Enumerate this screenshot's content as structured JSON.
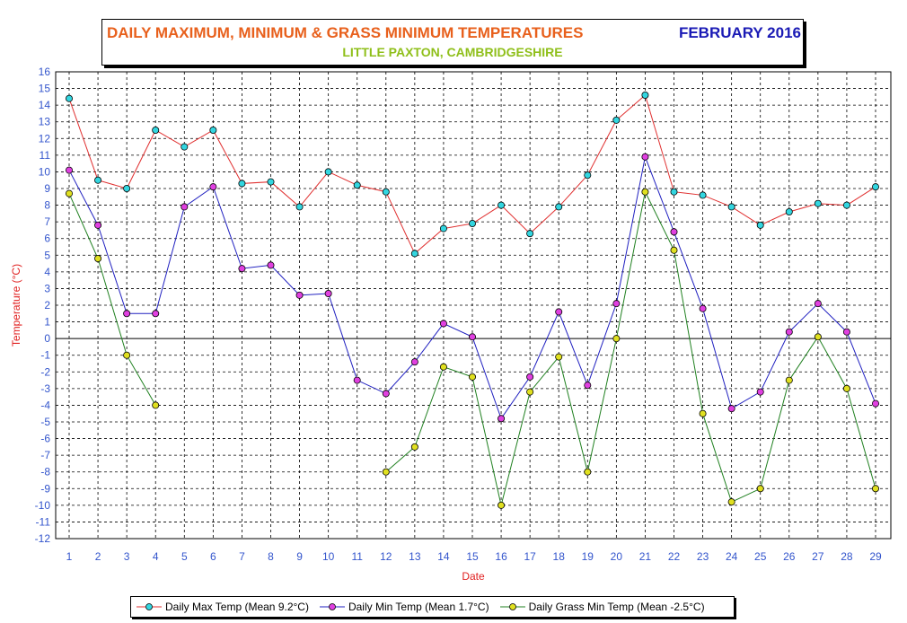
{
  "title": {
    "main": "DAILY MAXIMUM, MINIMUM & GRASS MINIMUM TEMPERATURES",
    "date": "FEBRUARY 2016",
    "subtitle": "LITTLE PAXTON, CAMBRIDGESHIRE"
  },
  "colors": {
    "title_main": "#e8601c",
    "title_date": "#1a1ab5",
    "subtitle": "#8fbf1a",
    "axis_label": "#e02020",
    "tick_label": "#3355cc"
  },
  "chart_data": {
    "type": "line",
    "title": "DAILY MAXIMUM, MINIMUM & GRASS MINIMUM TEMPERATURES FEBRUARY 2016",
    "subtitle": "LITTLE PAXTON, CAMBRIDGESHIRE",
    "xlabel": "Date",
    "ylabel": "Temperature (°C)",
    "ylim": [
      -12,
      16
    ],
    "xlim": [
      1,
      29
    ],
    "grid": true,
    "legend_position": "bottom",
    "x": [
      1,
      2,
      3,
      4,
      5,
      6,
      7,
      8,
      9,
      10,
      11,
      12,
      13,
      14,
      15,
      16,
      17,
      18,
      19,
      20,
      21,
      22,
      23,
      24,
      25,
      26,
      27,
      28,
      29
    ],
    "y_ticks": [
      16,
      15,
      14,
      13,
      12,
      11,
      10,
      9,
      8,
      7,
      6,
      5,
      4,
      3,
      2,
      1,
      0,
      -1,
      -2,
      -3,
      -4,
      -5,
      -6,
      -7,
      -8,
      -9,
      -10,
      -11,
      -12
    ],
    "series": [
      {
        "name": "Daily Max Temp (Mean 9.2°C)",
        "line_color": "#e03030",
        "marker_color": "#33d6e0",
        "values": [
          14.4,
          9.5,
          9.0,
          12.5,
          11.5,
          12.5,
          9.3,
          9.4,
          7.9,
          10.0,
          9.2,
          8.8,
          5.1,
          6.6,
          6.9,
          8.0,
          6.3,
          7.9,
          9.8,
          13.1,
          14.6,
          8.8,
          8.6,
          7.9,
          6.8,
          7.6,
          8.1,
          8.0,
          9.1
        ]
      },
      {
        "name": "Daily Min Temp (Mean 1.7°C)",
        "line_color": "#2020c0",
        "marker_color": "#e040e0",
        "values": [
          10.1,
          6.8,
          1.5,
          1.5,
          7.9,
          9.1,
          4.2,
          4.4,
          2.6,
          2.7,
          -2.5,
          -3.3,
          -1.4,
          0.9,
          0.1,
          -4.8,
          -2.3,
          1.6,
          -2.8,
          2.1,
          10.9,
          6.4,
          1.8,
          -4.2,
          -3.2,
          0.4,
          2.1,
          0.4,
          -3.9
        ]
      },
      {
        "name": "Daily Grass Min Temp (Mean -2.5°C)",
        "line_color": "#208020",
        "marker_color": "#e0e020",
        "values": [
          8.7,
          4.8,
          -1.0,
          -4.0,
          null,
          null,
          null,
          null,
          null,
          null,
          null,
          -8.0,
          -6.5,
          -1.7,
          -2.3,
          -10.0,
          -3.2,
          -1.1,
          -8.0,
          0.0,
          8.8,
          5.3,
          -4.5,
          -9.8,
          -9.0,
          -2.5,
          0.1,
          -3.0,
          -9.0
        ]
      }
    ]
  }
}
